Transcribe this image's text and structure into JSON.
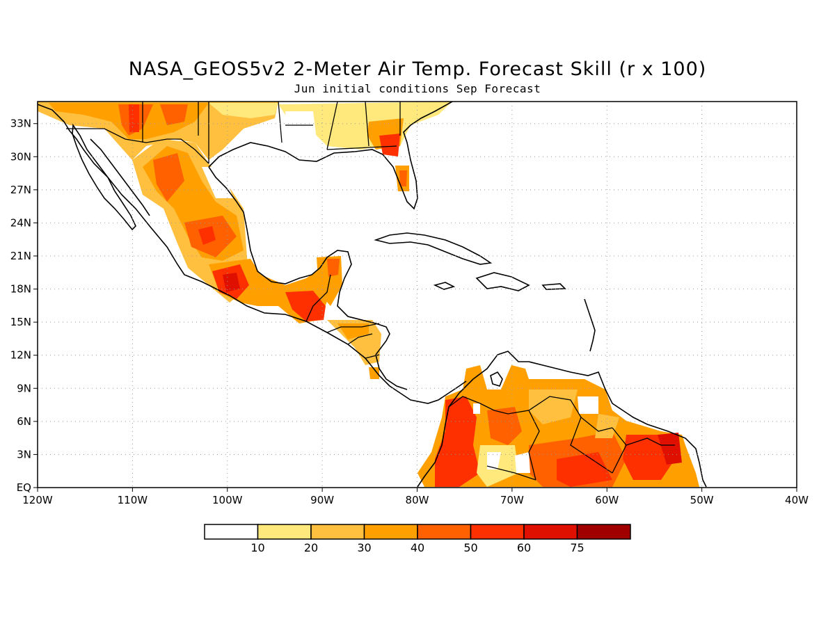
{
  "title": "NASA_GEOS5v2 2-Meter Air Temp. Forecast Skill (r x 100)",
  "subtitle": "Jun initial conditions  Sep Forecast",
  "map": {
    "lon_range": [
      -120,
      -40
    ],
    "lat_range": [
      0,
      35
    ],
    "lon_ticks": [
      {
        "lon": -120,
        "label": "120W"
      },
      {
        "lon": -110,
        "label": "110W"
      },
      {
        "lon": -100,
        "label": "100W"
      },
      {
        "lon": -90,
        "label": "90W"
      },
      {
        "lon": -80,
        "label": "80W"
      },
      {
        "lon": -70,
        "label": "70W"
      },
      {
        "lon": -60,
        "label": "60W"
      },
      {
        "lon": -50,
        "label": "50W"
      },
      {
        "lon": -40,
        "label": "40W"
      }
    ],
    "lat_ticks": [
      {
        "lat": 0,
        "label": "EQ"
      },
      {
        "lat": 3,
        "label": "3N"
      },
      {
        "lat": 6,
        "label": "6N"
      },
      {
        "lat": 9,
        "label": "9N"
      },
      {
        "lat": 12,
        "label": "12N"
      },
      {
        "lat": 15,
        "label": "15N"
      },
      {
        "lat": 18,
        "label": "18N"
      },
      {
        "lat": 21,
        "label": "21N"
      },
      {
        "lat": 24,
        "label": "24N"
      },
      {
        "lat": 27,
        "label": "27N"
      },
      {
        "lat": 30,
        "label": "30N"
      },
      {
        "lat": 33,
        "label": "33N"
      }
    ],
    "grid": "dotted"
  },
  "colorbar": {
    "colors": [
      "#ffffff",
      "#ffe87c",
      "#ffc040",
      "#ffa000",
      "#ff6000",
      "#ff3000",
      "#e01000",
      "#a00000"
    ],
    "labels": [
      "10",
      "20",
      "30",
      "40",
      "50",
      "60",
      "75"
    ]
  }
}
